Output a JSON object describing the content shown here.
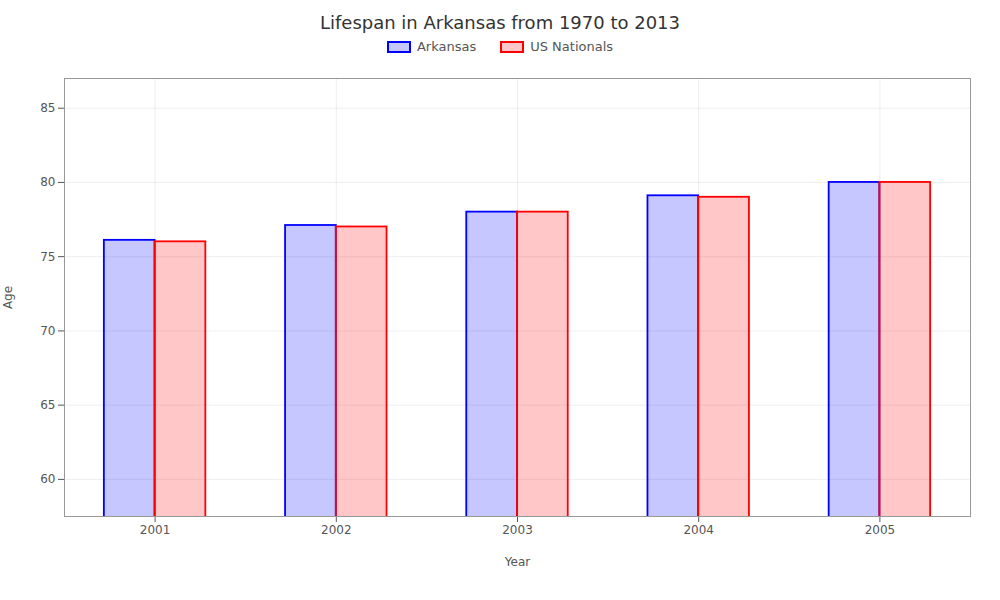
{
  "chart_data": {
    "type": "bar",
    "title": "Lifespan in Arkansas from 1970 to 2013",
    "xlabel": "Year",
    "ylabel": "Age",
    "categories": [
      "2001",
      "2002",
      "2003",
      "2004",
      "2005"
    ],
    "series": [
      {
        "name": "Arkansas",
        "color": "#0000ff",
        "values": [
          76.1,
          77.1,
          78.0,
          79.1,
          80.0
        ]
      },
      {
        "name": "US Nationals",
        "color": "#ff0000",
        "values": [
          76.0,
          77.0,
          78.0,
          79.0,
          80.0
        ]
      }
    ],
    "ylim": [
      57.5,
      87
    ],
    "yticks": [
      60,
      65,
      70,
      75,
      80,
      85
    ],
    "grid": true,
    "legend": "upper center"
  }
}
